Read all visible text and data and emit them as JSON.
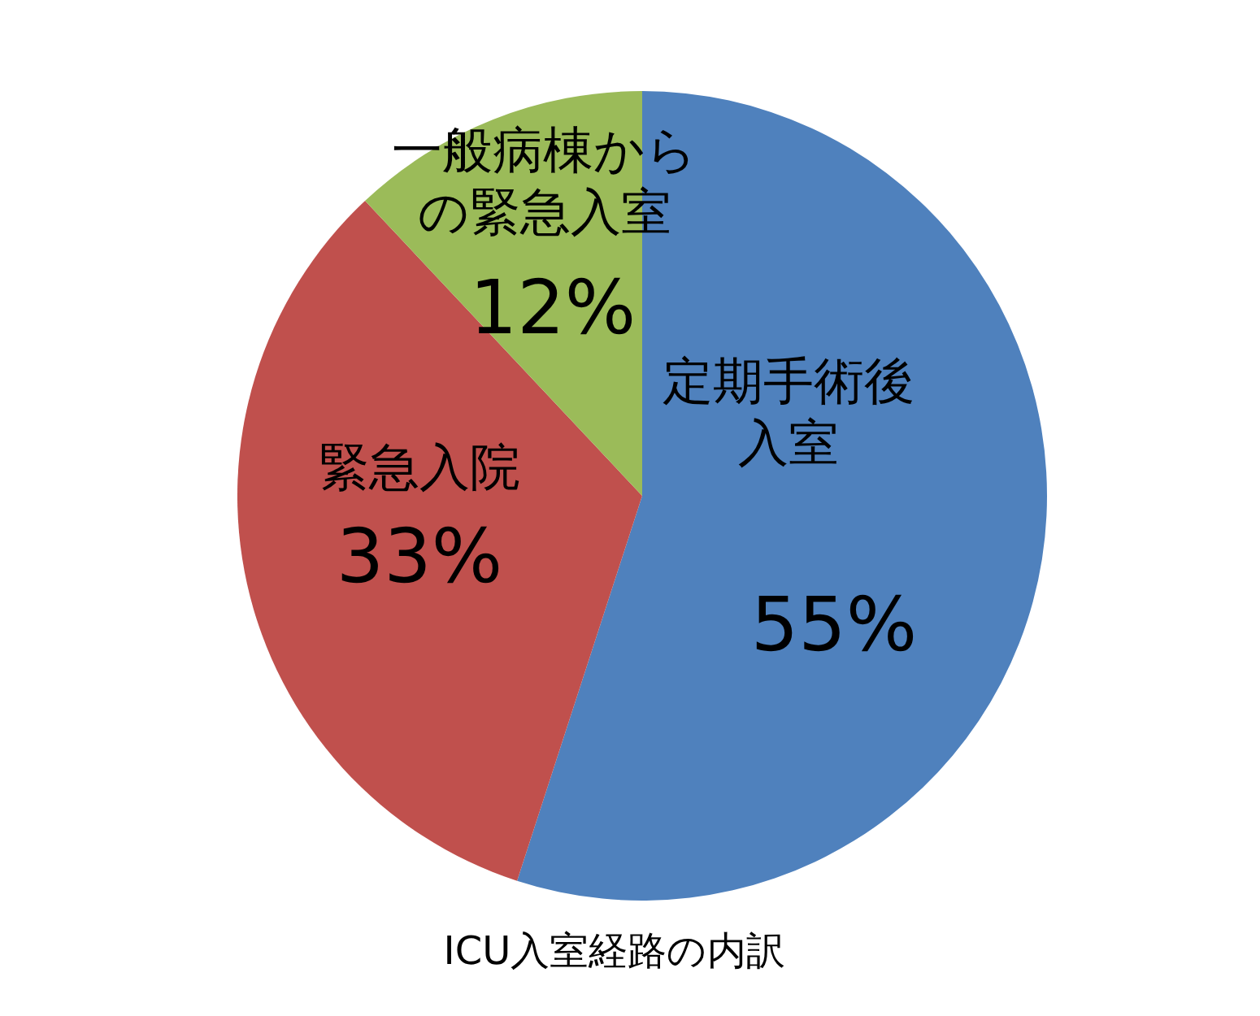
{
  "chart_data": {
    "type": "pie",
    "title": "ICU入室経路の内訳",
    "categories": [
      "定期手術後入室",
      "緊急入院",
      "一般病棟からの緊急入室"
    ],
    "values": [
      55,
      33,
      12
    ],
    "colors": [
      "#4f81bd",
      "#c0504d",
      "#9bbb59"
    ],
    "value_labels": [
      "55%",
      "33%",
      "12%"
    ]
  }
}
